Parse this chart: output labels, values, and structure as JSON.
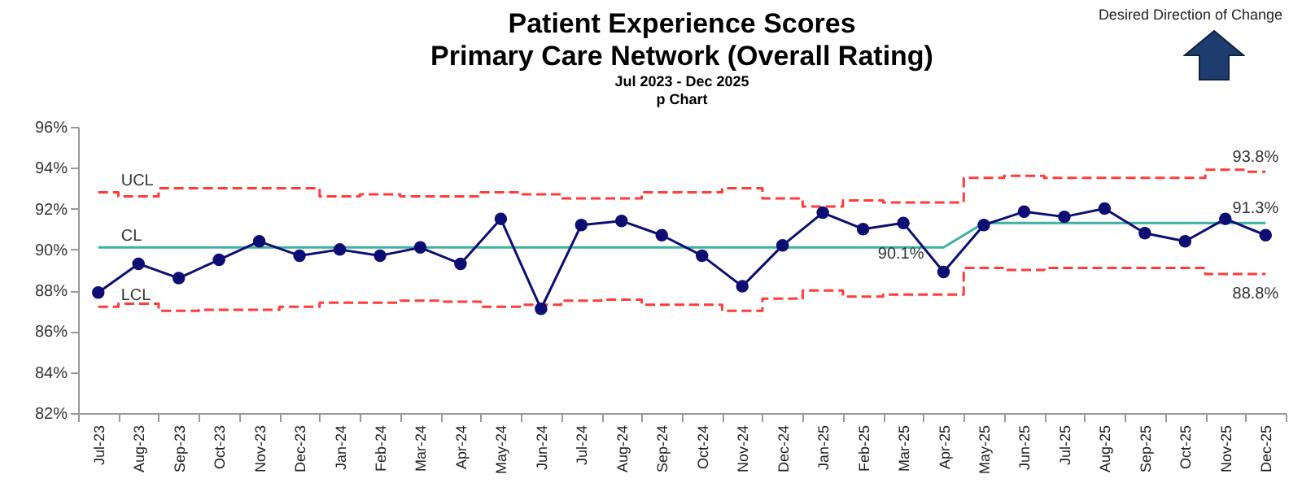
{
  "chart_data": {
    "type": "line",
    "title": "Patient Experience Scores\nPrimary Care Network (Overall Rating)",
    "subtitle": "Jul 2023 - Dec 2025\np Chart",
    "categories": [
      "Jul-23",
      "Aug-23",
      "Sep-23",
      "Oct-23",
      "Nov-23",
      "Dec-23",
      "Jan-24",
      "Feb-24",
      "Mar-24",
      "Apr-24",
      "May-24",
      "Jun-24",
      "Jul-24",
      "Aug-24",
      "Sep-24",
      "Oct-24",
      "Nov-24",
      "Dec-24",
      "Jan-25",
      "Feb-25",
      "Mar-25",
      "Apr-25",
      "May-25",
      "Jun-25",
      "Jul-25",
      "Aug-25",
      "Sep-25",
      "Oct-25",
      "Nov-25",
      "Dec-25"
    ],
    "series": [
      {
        "type": "step",
        "name": "UCL",
        "color": "#ff3b3b",
        "line_style": "dashed",
        "values": [
          92.8,
          92.6,
          93.0,
          93.0,
          93.0,
          93.0,
          92.6,
          92.7,
          92.6,
          92.6,
          92.8,
          92.7,
          92.5,
          92.5,
          92.8,
          92.8,
          93.0,
          92.5,
          92.1,
          92.4,
          92.3,
          92.3,
          93.5,
          93.6,
          93.5,
          93.5,
          93.5,
          93.5,
          93.9,
          93.8
        ]
      },
      {
        "type": "line",
        "name": "CL",
        "color": "#3fb0a0",
        "values": [
          90.1,
          90.1,
          90.1,
          90.1,
          90.1,
          90.1,
          90.1,
          90.1,
          90.1,
          90.1,
          90.1,
          90.1,
          90.1,
          90.1,
          90.1,
          90.1,
          90.1,
          90.1,
          90.1,
          90.1,
          90.1,
          90.1,
          91.3,
          91.3,
          91.3,
          91.3,
          91.3,
          91.3,
          91.3,
          91.3
        ]
      },
      {
        "type": "step",
        "name": "LCL",
        "color": "#ff3b3b",
        "line_style": "dashed",
        "values": [
          87.2,
          87.35,
          87.0,
          87.05,
          87.05,
          87.2,
          87.4,
          87.4,
          87.5,
          87.45,
          87.2,
          87.3,
          87.5,
          87.55,
          87.3,
          87.3,
          87.0,
          87.6,
          88.0,
          87.7,
          87.8,
          87.8,
          89.1,
          89.0,
          89.1,
          89.1,
          89.1,
          89.1,
          88.8,
          88.8
        ]
      },
      {
        "type": "line",
        "color": "#0d0d73",
        "marker": "circle",
        "values": [
          87.9,
          89.3,
          88.6,
          89.5,
          90.4,
          89.7,
          90.0,
          89.7,
          90.1,
          89.3,
          91.5,
          87.1,
          91.2,
          91.4,
          90.7,
          89.7,
          88.2,
          90.2,
          91.8,
          91.0,
          91.3,
          88.9,
          91.2,
          91.85,
          91.6,
          92.0,
          90.8,
          90.4,
          91.5,
          90.7
        ]
      }
    ],
    "ylim": [
      82,
      96
    ],
    "yticks": [
      {
        "value": 82,
        "label": "82%"
      },
      {
        "value": 84,
        "label": "84%"
      },
      {
        "value": 86,
        "label": "86%"
      },
      {
        "value": 88,
        "label": "88%"
      },
      {
        "value": 90,
        "label": "90%"
      },
      {
        "value": 92,
        "label": "92%"
      },
      {
        "value": 94,
        "label": "94%"
      },
      {
        "value": 96,
        "label": "96%"
      }
    ],
    "annotations": [
      "Desired Direction of Change",
      {
        "text": "93.8%",
        "x": "Dec-25",
        "y": 93.8
      },
      {
        "text": "91.3%",
        "x": "Dec-25",
        "y": 91.3
      },
      {
        "text": "88.8%",
        "x": "Dec-25",
        "y": 88.8
      },
      {
        "text": "90.1%",
        "x": "Apr-25",
        "y": 90.1
      }
    ]
  }
}
